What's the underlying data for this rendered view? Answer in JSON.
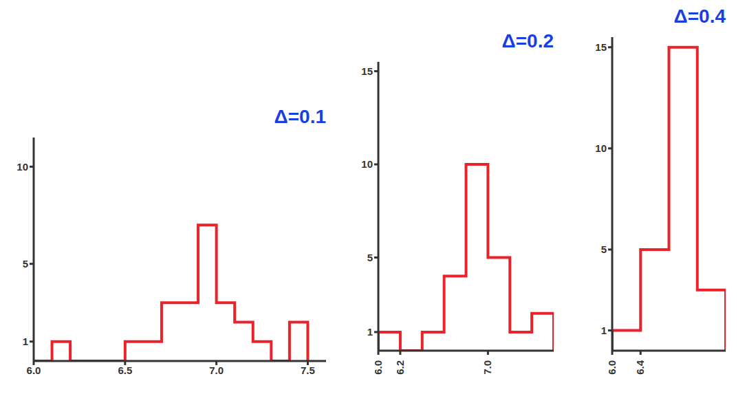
{
  "chart_data": [
    {
      "type": "histogram",
      "title": "Δ=0.1",
      "color": "#e8232a",
      "bins": [
        6.0,
        6.1,
        6.2,
        6.3,
        6.4,
        6.5,
        6.6,
        6.7,
        6.8,
        6.9,
        7.0,
        7.1,
        7.2,
        7.3,
        7.4,
        7.5
      ],
      "counts": [
        0,
        1,
        0,
        0,
        0,
        1,
        1,
        3,
        3,
        7,
        3,
        2,
        1,
        0,
        2
      ],
      "xlim": [
        6.0,
        7.6
      ],
      "xticks": [
        {
          "value": 6.0,
          "label": "6.0"
        },
        {
          "value": 6.5,
          "label": "6.5"
        },
        {
          "value": 7.0,
          "label": "7.0"
        },
        {
          "value": 7.5,
          "label": "7.5"
        }
      ],
      "ylim": [
        0,
        11.5
      ],
      "yticks": [
        1,
        5,
        10
      ]
    },
    {
      "type": "histogram",
      "title": "Δ=0.2",
      "color": "#e8232a",
      "bins": [
        6.0,
        6.2,
        6.4,
        6.6,
        6.8,
        7.0,
        7.2,
        7.4,
        7.6
      ],
      "counts": [
        1,
        0,
        1,
        4,
        10,
        5,
        1,
        2
      ],
      "xlim": [
        6.0,
        7.6
      ],
      "xticks": [
        {
          "value": 6.0,
          "label": "6.0"
        },
        {
          "value": 6.2,
          "label": "6.2"
        },
        {
          "value": 7.0,
          "label": "7.0"
        }
      ],
      "ylim": [
        0,
        15.5
      ],
      "yticks": [
        1,
        5,
        10,
        15
      ]
    },
    {
      "type": "histogram",
      "title": "Δ=0.4",
      "color": "#e8232a",
      "bins": [
        6.0,
        6.4,
        6.8,
        7.2,
        7.6
      ],
      "counts": [
        1,
        5,
        15,
        3
      ],
      "xlim": [
        6.0,
        7.6
      ],
      "xticks": [
        {
          "value": 6.0,
          "label": "6.0"
        },
        {
          "value": 6.4,
          "label": "6.4"
        }
      ],
      "ylim": [
        0,
        15.5
      ],
      "yticks": [
        1,
        5,
        10,
        15
      ]
    }
  ]
}
